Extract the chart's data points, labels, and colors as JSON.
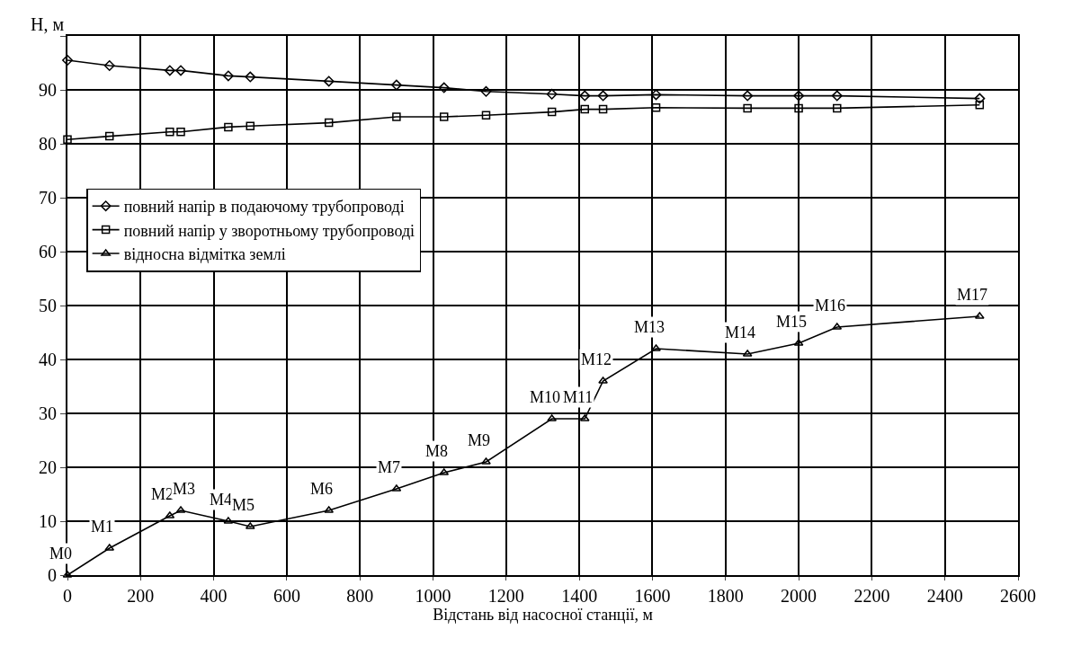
{
  "chart_data": {
    "type": "line",
    "xlabel": "Відстань від насосної станції, м",
    "ylabel": "Н, м",
    "x": [
      0,
      115,
      280,
      310,
      440,
      500,
      715,
      900,
      1030,
      1145,
      1325,
      1415,
      1465,
      1610,
      1860,
      2000,
      2105,
      2495
    ],
    "series": [
      {
        "name": "повний напір в подаючому трубопроводі",
        "color": "#000000",
        "marker": "diamond",
        "values": [
          95.5,
          94.5,
          93.6,
          93.6,
          92.6,
          92.4,
          91.6,
          90.9,
          90.4,
          89.7,
          89.2,
          88.9,
          88.9,
          89.1,
          88.9,
          88.9,
          88.9,
          88.4
        ]
      },
      {
        "name": "повний напір у зворотньому трубопроводі",
        "color": "#000000",
        "marker": "square",
        "values": [
          80.8,
          81.4,
          82.2,
          82.2,
          83.1,
          83.3,
          83.9,
          85.0,
          85.0,
          85.3,
          85.9,
          86.4,
          86.4,
          86.7,
          86.6,
          86.6,
          86.6,
          87.2
        ]
      },
      {
        "name": "відносна відмітка землі",
        "color": "#000000",
        "marker": "triangle",
        "values": [
          0,
          5,
          11,
          12,
          10,
          9,
          12,
          16,
          19,
          21,
          29,
          29,
          36,
          42,
          41,
          43,
          46,
          48
        ]
      }
    ],
    "annotations": [
      {
        "text": "M0",
        "x": 0,
        "y": 0
      },
      {
        "text": "M1",
        "x": 115,
        "y": 5
      },
      {
        "text": "M2",
        "x": 280,
        "y": 11
      },
      {
        "text": "M3",
        "x": 310,
        "y": 12
      },
      {
        "text": "M4",
        "x": 440,
        "y": 10
      },
      {
        "text": "M5",
        "x": 500,
        "y": 9
      },
      {
        "text": "M6",
        "x": 715,
        "y": 12
      },
      {
        "text": "M7",
        "x": 900,
        "y": 16
      },
      {
        "text": "M8",
        "x": 1030,
        "y": 19
      },
      {
        "text": "M9",
        "x": 1145,
        "y": 21
      },
      {
        "text": "M10",
        "x": 1325,
        "y": 29
      },
      {
        "text": "M11",
        "x": 1415,
        "y": 29
      },
      {
        "text": "M12",
        "x": 1465,
        "y": 36
      },
      {
        "text": "M13",
        "x": 1610,
        "y": 42
      },
      {
        "text": "M14",
        "x": 1860,
        "y": 41
      },
      {
        "text": "M15",
        "x": 2000,
        "y": 43
      },
      {
        "text": "M16",
        "x": 2105,
        "y": 46
      },
      {
        "text": "M17",
        "x": 2495,
        "y": 48
      }
    ],
    "xlim": [
      0,
      2600
    ],
    "xticks": [
      0,
      200,
      400,
      600,
      800,
      1000,
      1200,
      1400,
      1600,
      1800,
      2000,
      2200,
      2400,
      2600
    ],
    "ylim": [
      0,
      100
    ],
    "yticks": [
      0,
      10,
      20,
      30,
      40,
      50,
      60,
      70,
      80,
      90,
      {
        "value": 100,
        "label": null
      }
    ],
    "grid": true,
    "legend": "left",
    "line_style": "solid"
  }
}
